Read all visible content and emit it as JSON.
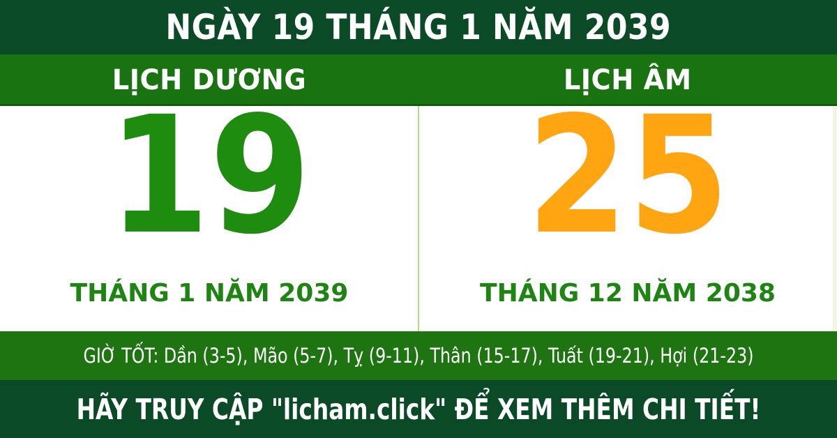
{
  "colors": {
    "dark_green": "#0a4a26",
    "band_green": "#187310",
    "hours_green": "#1d7411",
    "solar_day_green": "#1d8c0f",
    "lunar_day_orange": "#ffa512",
    "month_green": "#1e8412",
    "divider_green": "#aedd84"
  },
  "top_banner": {
    "title": "NGÀY 19 THÁNG 1 NĂM 2039"
  },
  "columns": {
    "solar": {
      "header": "LỊCH DƯƠNG",
      "day": "19",
      "month_year": "THÁNG 1 NĂM 2039"
    },
    "lunar": {
      "header": "LỊCH ÂM",
      "day": "25",
      "month_year": "THÁNG 12 NĂM 2038"
    }
  },
  "good_hours": {
    "text": "GIỜ TỐT: Dần (3-5), Mão (5-7), Tỵ (9-11), Thân (15-17), Tuất (19-21), Hợi (21-23)"
  },
  "footer": {
    "message": "HÃY TRUY CẬP \"licham.click\" ĐỂ XEM THÊM CHI TIẾT!"
  }
}
